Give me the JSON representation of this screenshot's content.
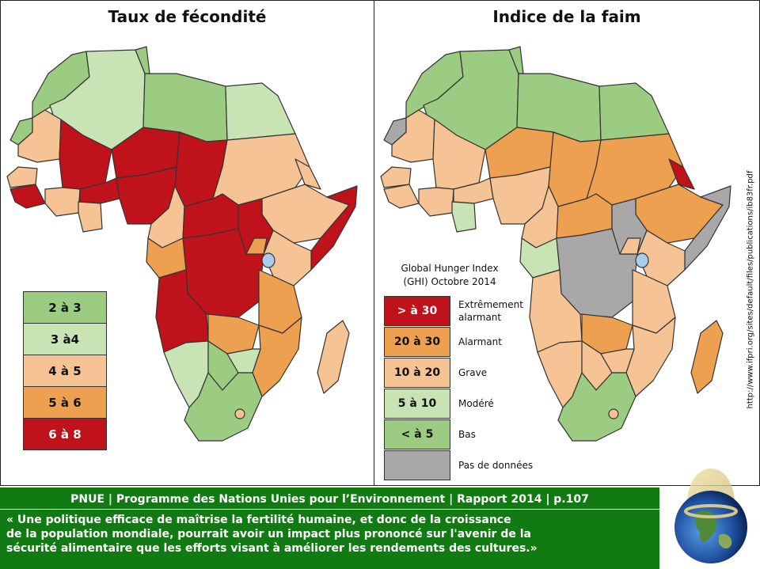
{
  "left_map": {
    "title": "Taux de fécondité",
    "legend": [
      {
        "label": "2 à 3",
        "color": "#9ccc82"
      },
      {
        "label": "3 à4",
        "color": "#c8e4b4"
      },
      {
        "label": "4 à 5",
        "color": "#f6c494"
      },
      {
        "label": "5 à 6",
        "color": "#eda050"
      },
      {
        "label": "6 à 8",
        "color": "#c0121a"
      }
    ]
  },
  "right_map": {
    "title": "Indice de la faim",
    "legend_title_line1": "Global Hunger Index",
    "legend_title_line2": "(GHI) Octobre 2014",
    "legend": [
      {
        "value": "> à 30",
        "label_line1": "Extrêmement",
        "label_line2": "alarmant",
        "color": "#c0121a"
      },
      {
        "value": "20 à 30",
        "label_line1": "Alarmant",
        "label_line2": "",
        "color": "#eda050"
      },
      {
        "value": "10 à 20",
        "label_line1": "Grave",
        "label_line2": "",
        "color": "#f6c494"
      },
      {
        "value": "5 à 10",
        "label_line1": "Modéré",
        "label_line2": "",
        "color": "#c8e4b4"
      },
      {
        "value": "< à 5",
        "label_line1": "Bas",
        "label_line2": "",
        "color": "#9ccc82"
      },
      {
        "value": "",
        "label_line1": "Pas de données",
        "label_line2": "",
        "color": "#a8a8a8"
      }
    ],
    "source_url": "http://www.ifpri.org/sites/default/files/publications/ib83fr.pdf"
  },
  "colors": {
    "red": "#c0121a",
    "orange": "#eda050",
    "peach": "#f6c494",
    "light_green": "#c8e4b4",
    "green": "#9ccc82",
    "grey": "#a8a8a8",
    "water": "#a9cdea",
    "banner": "#127a12"
  },
  "banner": {
    "headline": "PNUE | Programme des Nations Unies pour l’Environnement | Rapport 2014 | p.107",
    "quote": "« Une politique efficace de maîtrise la fertilité humaine, et donc de la croissance\nde la population mondiale, pourrait avoir un impact plus prononcé sur l'avenir de la\nsécurité alimentaire que les efforts visant à améliorer les rendements des cultures.»"
  },
  "globe_icon": "earth-globe-with-condom-icon"
}
